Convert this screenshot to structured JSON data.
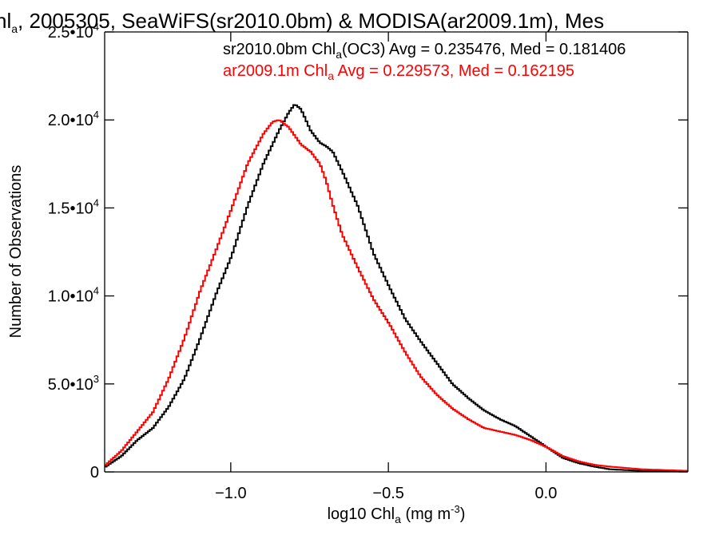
{
  "chart_data": {
    "type": "line",
    "title": {
      "pre": "hl",
      "sub": "a",
      "post": ", 2005305, SeaWiFS(sr2010.0bm) & MODISA(ar2009.1m), Mes"
    },
    "xlabel": {
      "pre": "log10 Chl",
      "sub": "a",
      "mid": " (mg m",
      "sup": "-3",
      "post": ")"
    },
    "ylabel": "Number of Observations",
    "xlim": [
      -1.4,
      0.45
    ],
    "ylim": [
      0,
      25000
    ],
    "x_ticks": [
      {
        "value": -1.0,
        "label": "−1.0"
      },
      {
        "value": -0.5,
        "label": "−0.5"
      },
      {
        "value": 0.0,
        "label": "0.0"
      }
    ],
    "y_ticks": [
      {
        "value": 0,
        "mant": "0",
        "exp": ""
      },
      {
        "value": 5000,
        "mant": "5.0•10",
        "exp": "3"
      },
      {
        "value": 10000,
        "mant": "1.0•10",
        "exp": "4"
      },
      {
        "value": 15000,
        "mant": "1.5•10",
        "exp": "4"
      },
      {
        "value": 20000,
        "mant": "2.0•10",
        "exp": "4"
      },
      {
        "value": 25000,
        "mant": "2.5•10",
        "exp": "4"
      }
    ],
    "grid": false,
    "legend_position": "top-right",
    "series": [
      {
        "name": "sr2010.0bm Chl_a(OC3)",
        "legend": {
          "pre": "sr2010.0bm Chl",
          "sub": "a",
          "post": "(OC3) Avg = 0.235476, Med = 0.181406"
        },
        "color": "#000000",
        "x": [
          -1.4,
          -1.35,
          -1.3,
          -1.25,
          -1.2,
          -1.15,
          -1.1,
          -1.05,
          -1.0,
          -0.95,
          -0.9,
          -0.85,
          -0.82,
          -0.8,
          -0.78,
          -0.75,
          -0.72,
          -0.7,
          -0.68,
          -0.65,
          -0.6,
          -0.55,
          -0.5,
          -0.45,
          -0.4,
          -0.35,
          -0.3,
          -0.25,
          -0.2,
          -0.15,
          -0.1,
          -0.05,
          0.0,
          0.05,
          0.1,
          0.15,
          0.2,
          0.3,
          0.45
        ],
        "y": [
          300,
          900,
          1800,
          2500,
          3700,
          5300,
          7600,
          10100,
          12300,
          15100,
          17500,
          19400,
          20400,
          20900,
          20600,
          19400,
          18700,
          18500,
          18200,
          17100,
          15100,
          12400,
          10500,
          8700,
          7400,
          6200,
          5000,
          4200,
          3500,
          3000,
          2600,
          2000,
          1400,
          800,
          500,
          300,
          150,
          60,
          20
        ]
      },
      {
        "name": "ar2009.1m Chl_a",
        "legend": {
          "pre": "ar2009.1m Chl",
          "sub": "a",
          "post": " Avg = 0.229573, Med = 0.162195"
        },
        "color": "#ff0000",
        "x": [
          -1.4,
          -1.35,
          -1.3,
          -1.25,
          -1.2,
          -1.15,
          -1.1,
          -1.05,
          -1.0,
          -0.95,
          -0.9,
          -0.87,
          -0.85,
          -0.82,
          -0.8,
          -0.78,
          -0.75,
          -0.72,
          -0.7,
          -0.68,
          -0.65,
          -0.6,
          -0.55,
          -0.5,
          -0.45,
          -0.4,
          -0.35,
          -0.3,
          -0.25,
          -0.2,
          -0.15,
          -0.1,
          -0.05,
          0.0,
          0.05,
          0.1,
          0.15,
          0.2,
          0.3,
          0.45
        ],
        "y": [
          400,
          1200,
          2300,
          3400,
          5300,
          7600,
          10300,
          12600,
          15000,
          17500,
          19200,
          19900,
          20000,
          19600,
          19100,
          18600,
          18200,
          17500,
          16500,
          15200,
          13500,
          11600,
          9800,
          8400,
          6800,
          5400,
          4400,
          3600,
          3000,
          2500,
          2300,
          2100,
          1800,
          1400,
          900,
          600,
          400,
          300,
          150,
          60
        ]
      }
    ]
  }
}
